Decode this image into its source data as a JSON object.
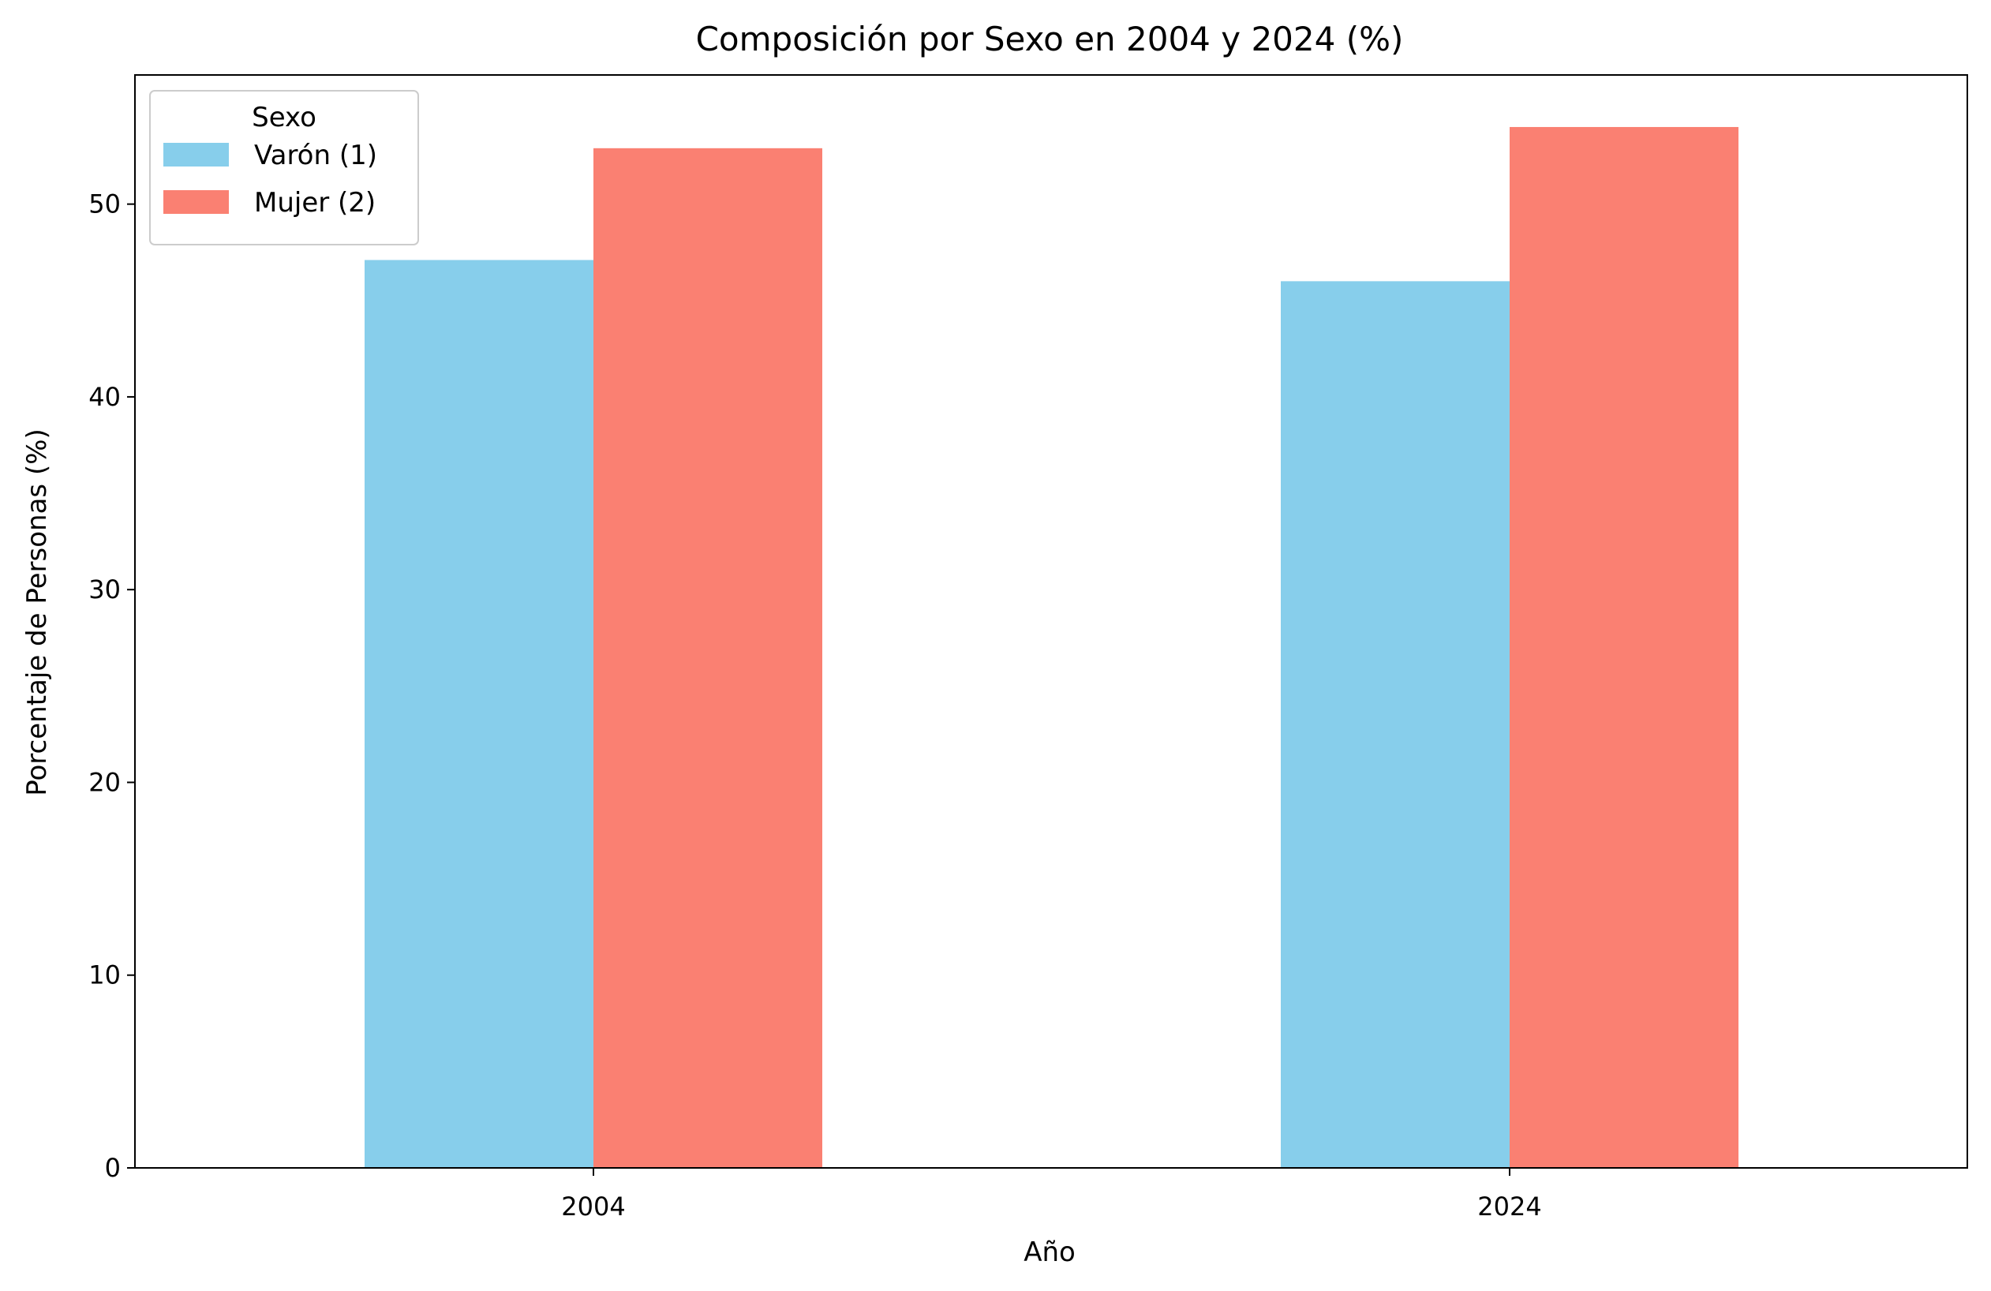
{
  "chart_data": {
    "type": "bar",
    "title": "Composición por Sexo en 2004 y 2024 (%)",
    "xlabel": "Año",
    "ylabel": "Porcentaje de Personas (%)",
    "categories": [
      "2004",
      "2024"
    ],
    "series": [
      {
        "name": "Varón (1)",
        "values": [
          47.1,
          46.0
        ],
        "color": "#87CEEB"
      },
      {
        "name": "Mujer (2)",
        "values": [
          52.9,
          54.0
        ],
        "color": "#FA8072"
      }
    ],
    "ylim": [
      0,
      56.7
    ],
    "yticks": [
      0,
      10,
      20,
      30,
      40,
      50
    ],
    "grid": false,
    "legend": {
      "title": "Sexo",
      "placement": "top-left"
    }
  }
}
